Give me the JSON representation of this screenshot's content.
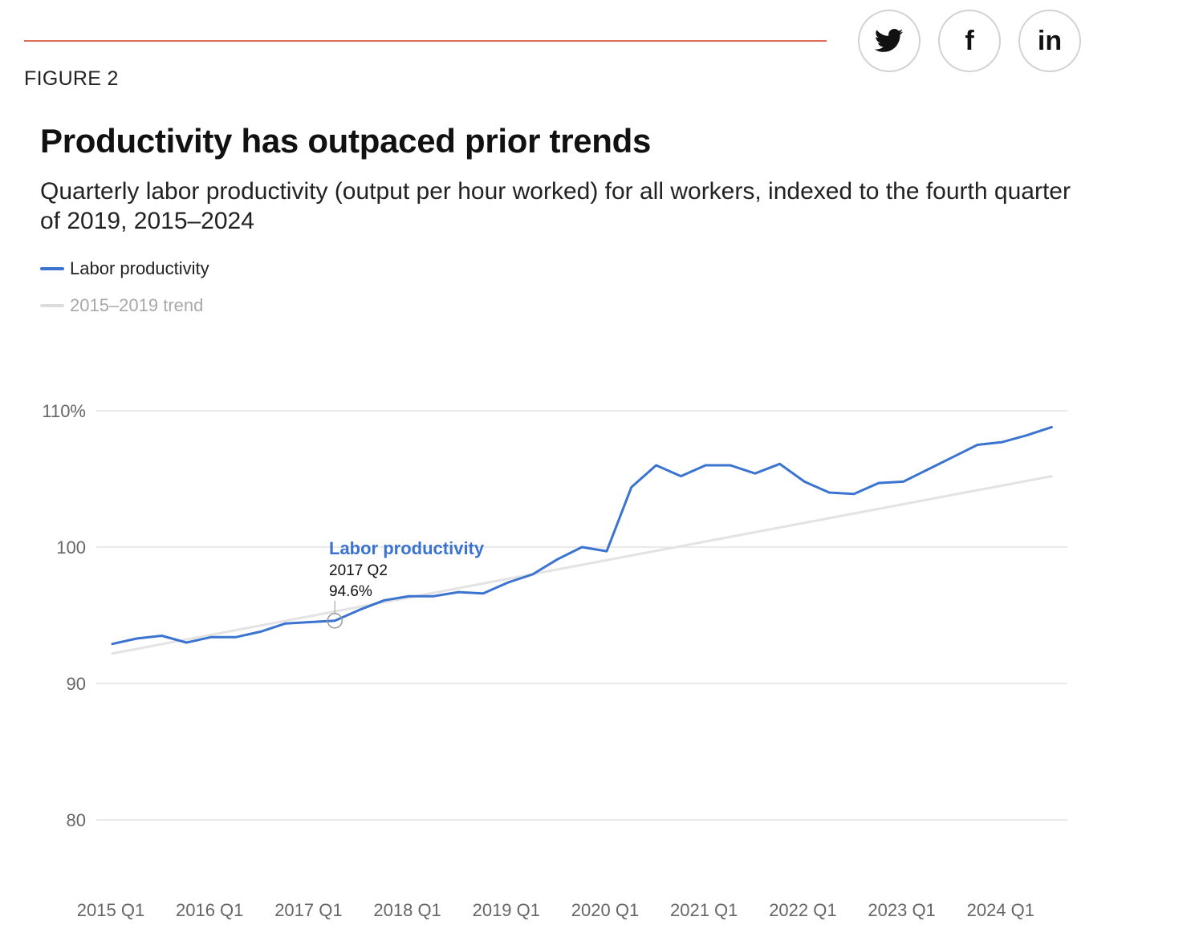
{
  "header": {
    "figure_label": "FIGURE 2",
    "accent_color": "#e06c5a"
  },
  "share": {
    "twitter_icon": "twitter-bird-icon",
    "facebook_icon": "facebook-f-icon",
    "facebook_glyph": "f",
    "linkedin_icon": "linkedin-in-icon",
    "linkedin_glyph": "in"
  },
  "chart_data": {
    "type": "line",
    "title": "Productivity has outpaced prior trends",
    "subtitle": "Quarterly labor productivity (output per hour worked) for all workers, indexed to the fourth quarter of 2019, 2015–2024",
    "xlabel": "",
    "ylabel": "",
    "ylim": [
      80,
      110
    ],
    "yticks": [
      {
        "value": 110,
        "label": "110%"
      },
      {
        "value": 100,
        "label": "100"
      },
      {
        "value": 90,
        "label": "90"
      },
      {
        "value": 80,
        "label": "80"
      }
    ],
    "x": [
      "2015 Q1",
      "2015 Q2",
      "2015 Q3",
      "2015 Q4",
      "2016 Q1",
      "2016 Q2",
      "2016 Q3",
      "2016 Q4",
      "2017 Q1",
      "2017 Q2",
      "2017 Q3",
      "2017 Q4",
      "2018 Q1",
      "2018 Q2",
      "2018 Q3",
      "2018 Q4",
      "2019 Q1",
      "2019 Q2",
      "2019 Q3",
      "2019 Q4",
      "2020 Q1",
      "2020 Q2",
      "2020 Q3",
      "2020 Q4",
      "2021 Q1",
      "2021 Q2",
      "2021 Q3",
      "2021 Q4",
      "2022 Q1",
      "2022 Q2",
      "2022 Q3",
      "2022 Q4",
      "2023 Q1",
      "2023 Q2",
      "2023 Q3",
      "2023 Q4",
      "2024 Q1",
      "2024 Q2",
      "2024 Q3"
    ],
    "xticks": [
      "2015 Q1",
      "2016 Q1",
      "2017 Q1",
      "2018 Q1",
      "2019 Q1",
      "2020 Q1",
      "2021 Q1",
      "2022 Q1",
      "2023 Q1",
      "2024 Q1"
    ],
    "grid": true,
    "legend_position": "top-left",
    "series": [
      {
        "name": "Labor productivity",
        "color": "#3b73d0",
        "values": [
          92.9,
          93.3,
          93.5,
          93.0,
          93.4,
          93.4,
          93.8,
          94.4,
          94.5,
          94.6,
          95.4,
          96.1,
          96.4,
          96.4,
          96.7,
          96.6,
          97.4,
          98.0,
          99.1,
          100.0,
          99.7,
          104.4,
          106.0,
          105.2,
          106.0,
          106.0,
          105.4,
          106.1,
          104.8,
          104.0,
          103.9,
          104.7,
          104.8,
          105.7,
          106.6,
          107.5,
          107.7,
          108.2,
          108.8
        ]
      },
      {
        "name": "2015–2019 trend",
        "color": "#e3e3e3",
        "start": {
          "x": "2015 Q1",
          "y": 92.2
        },
        "end": {
          "x": "2024 Q3",
          "y": 105.2
        }
      }
    ],
    "annotation": {
      "series": "Labor productivity",
      "period": "2017 Q2",
      "value_label": "94.6%",
      "value": 94.6
    }
  }
}
